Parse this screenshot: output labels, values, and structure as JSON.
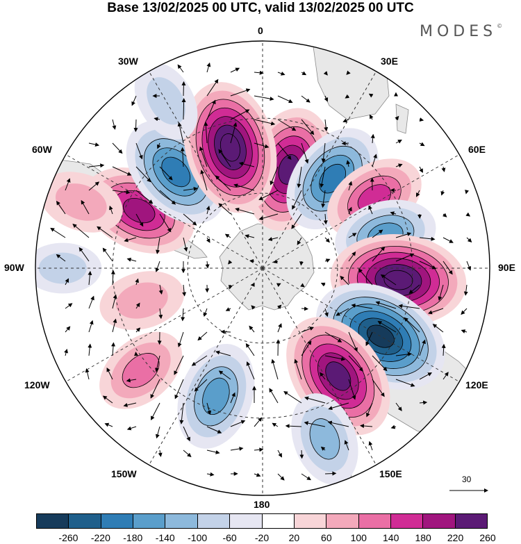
{
  "title": "Base 13/02/2025 00 UTC, valid 13/02/2025 00 UTC",
  "brand": {
    "name": "MODES",
    "mark": "©"
  },
  "longitude_labels": [
    "0",
    "30E",
    "60E",
    "90E",
    "120E",
    "150E",
    "180",
    "150W",
    "120W",
    "90W",
    "60W",
    "30W"
  ],
  "vector_scale": {
    "label": "30"
  },
  "colorbar": {
    "levels": [
      "-260",
      "-220",
      "-180",
      "-140",
      "-100",
      "-60",
      "-20",
      "20",
      "60",
      "100",
      "140",
      "180",
      "220",
      "260"
    ],
    "colors": [
      "#163b5b",
      "#1f5f8b",
      "#2f7db5",
      "#5a9ecb",
      "#8db9dc",
      "#c3d2e8",
      "#e6e6f2",
      "#ffffff",
      "#f8d5d8",
      "#f3a9bb",
      "#ea6fa5",
      "#d02c95",
      "#a0157e",
      "#5b1a75"
    ]
  },
  "map": {
    "projection": "south-polar-stereographic",
    "land_color": "#e8e8e8",
    "graticule": "dashed",
    "anomalies": [
      {
        "lon": 15,
        "colat": 0.45,
        "value": 230
      },
      {
        "lon": 38,
        "colat": 0.5,
        "value": -190
      },
      {
        "lon": 58,
        "colat": 0.58,
        "value": 150
      },
      {
        "lon": 75,
        "colat": 0.56,
        "value": -150
      },
      {
        "lon": 95,
        "colat": 0.6,
        "value": 270
      },
      {
        "lon": 120,
        "colat": 0.6,
        "value": -280
      },
      {
        "lon": 145,
        "colat": 0.58,
        "value": 250
      },
      {
        "lon": 160,
        "colat": 0.8,
        "value": -120
      },
      {
        "lon": 200,
        "colat": 0.6,
        "value": -170
      },
      {
        "lon": 230,
        "colat": 0.7,
        "value": 120
      },
      {
        "lon": 255,
        "colat": 0.55,
        "value": 90
      },
      {
        "lon": 295,
        "colat": 0.6,
        "value": 200
      },
      {
        "lon": 318,
        "colat": 0.57,
        "value": -210
      },
      {
        "lon": 345,
        "colat": 0.55,
        "value": 260
      },
      {
        "lon": 330,
        "colat": 0.85,
        "value": -80
      },
      {
        "lon": 290,
        "colat": 0.85,
        "value": 90
      },
      {
        "lon": 270,
        "colat": 0.88,
        "value": -60
      }
    ]
  }
}
